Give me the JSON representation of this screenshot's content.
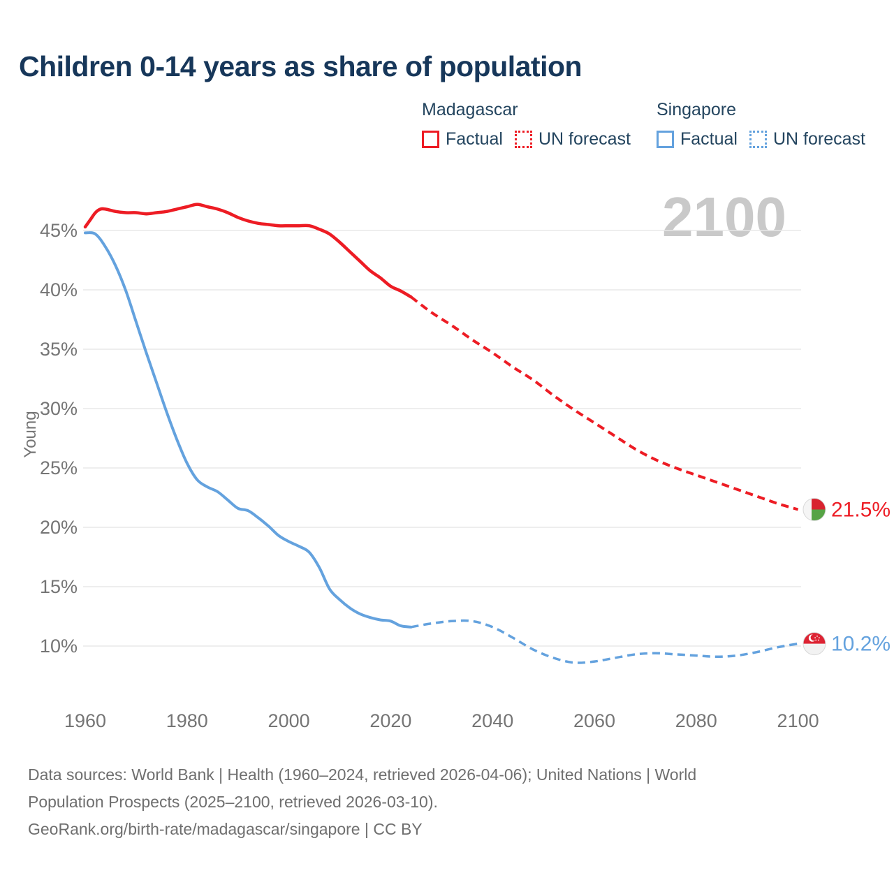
{
  "title": "Children 0-14 years as share of population",
  "watermark": "2100",
  "legend": {
    "groups": [
      {
        "name": "Madagascar",
        "factual_label": "Factual",
        "forecast_label": "UN forecast"
      },
      {
        "name": "Singapore",
        "factual_label": "Factual",
        "forecast_label": "UN forecast"
      }
    ]
  },
  "axis": {
    "y_title": "Young",
    "y_ticks": [
      {
        "value": 45,
        "label": "45%"
      },
      {
        "value": 40,
        "label": "40%"
      },
      {
        "value": 35,
        "label": "35%"
      },
      {
        "value": 30,
        "label": "30%"
      },
      {
        "value": 25,
        "label": "25%"
      },
      {
        "value": 20,
        "label": "20%"
      },
      {
        "value": 15,
        "label": "15%"
      },
      {
        "value": 10,
        "label": "10%"
      }
    ],
    "x_ticks": [
      {
        "value": 1960,
        "label": "1960"
      },
      {
        "value": 1980,
        "label": "1980"
      },
      {
        "value": 2000,
        "label": "2000"
      },
      {
        "value": 2020,
        "label": "2020"
      },
      {
        "value": 2040,
        "label": "2040"
      },
      {
        "value": 2060,
        "label": "2060"
      },
      {
        "value": 2080,
        "label": "2080"
      },
      {
        "value": 2100,
        "label": "2100"
      }
    ]
  },
  "chart_data": {
    "type": "line",
    "title": "Children 0-14 years as share of population",
    "xlabel": "",
    "ylabel": "Young",
    "xlim": [
      1960,
      2100
    ],
    "ylim": [
      8,
      48
    ],
    "grid": true,
    "legend_position": "top-right",
    "series": [
      {
        "country": "Madagascar",
        "kind": "factual",
        "name": "Madagascar — Factual",
        "style": "solid",
        "points": [
          [
            1960,
            45.3
          ],
          [
            1961,
            45.9
          ],
          [
            1962,
            46.5
          ],
          [
            1963,
            46.8
          ],
          [
            1964,
            46.8
          ],
          [
            1966,
            46.6
          ],
          [
            1968,
            46.5
          ],
          [
            1970,
            46.5
          ],
          [
            1972,
            46.4
          ],
          [
            1974,
            46.5
          ],
          [
            1976,
            46.6
          ],
          [
            1978,
            46.8
          ],
          [
            1980,
            47.0
          ],
          [
            1982,
            47.2
          ],
          [
            1984,
            47.0
          ],
          [
            1986,
            46.8
          ],
          [
            1988,
            46.5
          ],
          [
            1990,
            46.1
          ],
          [
            1992,
            45.8
          ],
          [
            1994,
            45.6
          ],
          [
            1996,
            45.5
          ],
          [
            1998,
            45.4
          ],
          [
            2000,
            45.4
          ],
          [
            2002,
            45.4
          ],
          [
            2004,
            45.4
          ],
          [
            2006,
            45.1
          ],
          [
            2008,
            44.7
          ],
          [
            2010,
            44.0
          ],
          [
            2012,
            43.2
          ],
          [
            2014,
            42.4
          ],
          [
            2016,
            41.6
          ],
          [
            2018,
            41.0
          ],
          [
            2020,
            40.3
          ],
          [
            2022,
            39.9
          ],
          [
            2024,
            39.4
          ]
        ]
      },
      {
        "country": "Madagascar",
        "kind": "forecast",
        "name": "Madagascar — UN forecast",
        "style": "dashed",
        "points": [
          [
            2024,
            39.4
          ],
          [
            2028,
            38.1
          ],
          [
            2032,
            37.0
          ],
          [
            2036,
            35.8
          ],
          [
            2040,
            34.7
          ],
          [
            2044,
            33.5
          ],
          [
            2048,
            32.4
          ],
          [
            2052,
            31.1
          ],
          [
            2056,
            29.9
          ],
          [
            2060,
            28.8
          ],
          [
            2064,
            27.7
          ],
          [
            2068,
            26.6
          ],
          [
            2072,
            25.7
          ],
          [
            2076,
            25.0
          ],
          [
            2080,
            24.4
          ],
          [
            2084,
            23.8
          ],
          [
            2088,
            23.2
          ],
          [
            2092,
            22.6
          ],
          [
            2096,
            22.0
          ],
          [
            2100,
            21.5
          ]
        ]
      },
      {
        "country": "Singapore",
        "kind": "factual",
        "name": "Singapore — Factual",
        "style": "solid",
        "points": [
          [
            1960,
            44.8
          ],
          [
            1962,
            44.7
          ],
          [
            1964,
            43.6
          ],
          [
            1966,
            42.0
          ],
          [
            1968,
            39.9
          ],
          [
            1970,
            37.3
          ],
          [
            1972,
            34.7
          ],
          [
            1974,
            32.2
          ],
          [
            1976,
            29.7
          ],
          [
            1978,
            27.4
          ],
          [
            1980,
            25.4
          ],
          [
            1982,
            24.0
          ],
          [
            1984,
            23.4
          ],
          [
            1986,
            23.0
          ],
          [
            1988,
            22.3
          ],
          [
            1990,
            21.6
          ],
          [
            1992,
            21.4
          ],
          [
            1994,
            20.8
          ],
          [
            1996,
            20.1
          ],
          [
            1998,
            19.3
          ],
          [
            2000,
            18.8
          ],
          [
            2002,
            18.4
          ],
          [
            2004,
            17.9
          ],
          [
            2006,
            16.6
          ],
          [
            2008,
            14.8
          ],
          [
            2010,
            13.9
          ],
          [
            2012,
            13.2
          ],
          [
            2014,
            12.7
          ],
          [
            2016,
            12.4
          ],
          [
            2018,
            12.2
          ],
          [
            2020,
            12.1
          ],
          [
            2022,
            11.7
          ],
          [
            2024,
            11.6
          ]
        ]
      },
      {
        "country": "Singapore",
        "kind": "forecast",
        "name": "Singapore — UN forecast",
        "style": "dashed",
        "points": [
          [
            2024,
            11.6
          ],
          [
            2028,
            11.9
          ],
          [
            2032,
            12.1
          ],
          [
            2036,
            12.1
          ],
          [
            2040,
            11.6
          ],
          [
            2044,
            10.7
          ],
          [
            2048,
            9.7
          ],
          [
            2052,
            9.0
          ],
          [
            2056,
            8.6
          ],
          [
            2060,
            8.7
          ],
          [
            2064,
            9.0
          ],
          [
            2068,
            9.3
          ],
          [
            2072,
            9.4
          ],
          [
            2076,
            9.3
          ],
          [
            2080,
            9.2
          ],
          [
            2084,
            9.1
          ],
          [
            2088,
            9.2
          ],
          [
            2092,
            9.5
          ],
          [
            2096,
            9.9
          ],
          [
            2100,
            10.2
          ]
        ]
      }
    ],
    "end_labels": [
      {
        "country": "Madagascar",
        "text": "21.5%",
        "value": 21.5,
        "flag": "madagascar"
      },
      {
        "country": "Singapore",
        "text": "10.2%",
        "value": 10.2,
        "flag": "singapore"
      }
    ]
  },
  "footer": {
    "lines": [
      "Data sources: World Bank | Health (1960–2024, retrieved 2026-04-06); United Nations | World",
      "Population Prospects (2025–2100, retrieved 2026-03-10).",
      "GeoRank.org/birth-rate/madagascar/singapore | CC BY"
    ]
  },
  "colors": {
    "madagascar": "#ed1c24",
    "singapore": "#64a2de",
    "title_text": "#17375a",
    "legend_text": "#24455f",
    "axis_text": "#757575",
    "gridline": "#e8e8e8",
    "watermark": "#c9c9c9",
    "footer_text": "#6f6f6f",
    "flag_madagascar_red": "#d8232f",
    "flag_madagascar_green": "#56a345",
    "flag_madagascar_white": "#f5f5f5",
    "flag_singapore_red": "#dd2333",
    "flag_singapore_white": "#f2f2f2",
    "flag_ring": "#d8d8d8"
  }
}
